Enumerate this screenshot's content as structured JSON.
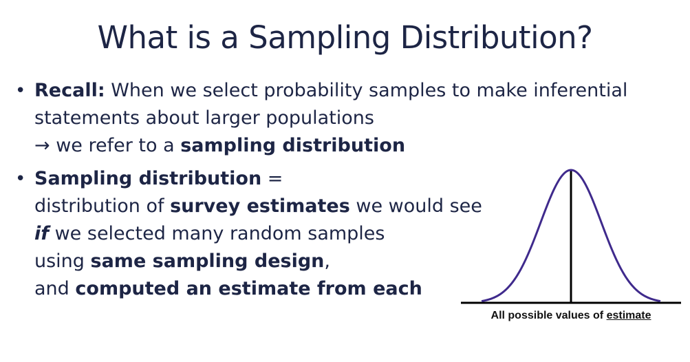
{
  "title": "What is a Sampling Distribution?",
  "bullet1": {
    "lead": "Recall:",
    "text1": " When we select probability samples to make inferential",
    "text2": "statements about larger populations",
    "arrow": "→",
    "text3": " we refer to a ",
    "bold3": "sampling distribution"
  },
  "bullet2": {
    "lead": "Sampling distribution",
    "eq": " =",
    "l2a": "distribution of ",
    "l2b": "survey estimates",
    "l2c": " we would see",
    "l3a": "if",
    "l3b": " we selected many random samples",
    "l4a": "using ",
    "l4b": "same sampling design",
    "l4c": ",",
    "l5a": "and ",
    "l5b": "computed an estimate from each"
  },
  "bullet_symbol": "•",
  "figure": {
    "caption_prefix": "All possible values of ",
    "caption_underlined": "estimate",
    "curve_color": "#3f2a8c",
    "axis_color": "#000000"
  }
}
